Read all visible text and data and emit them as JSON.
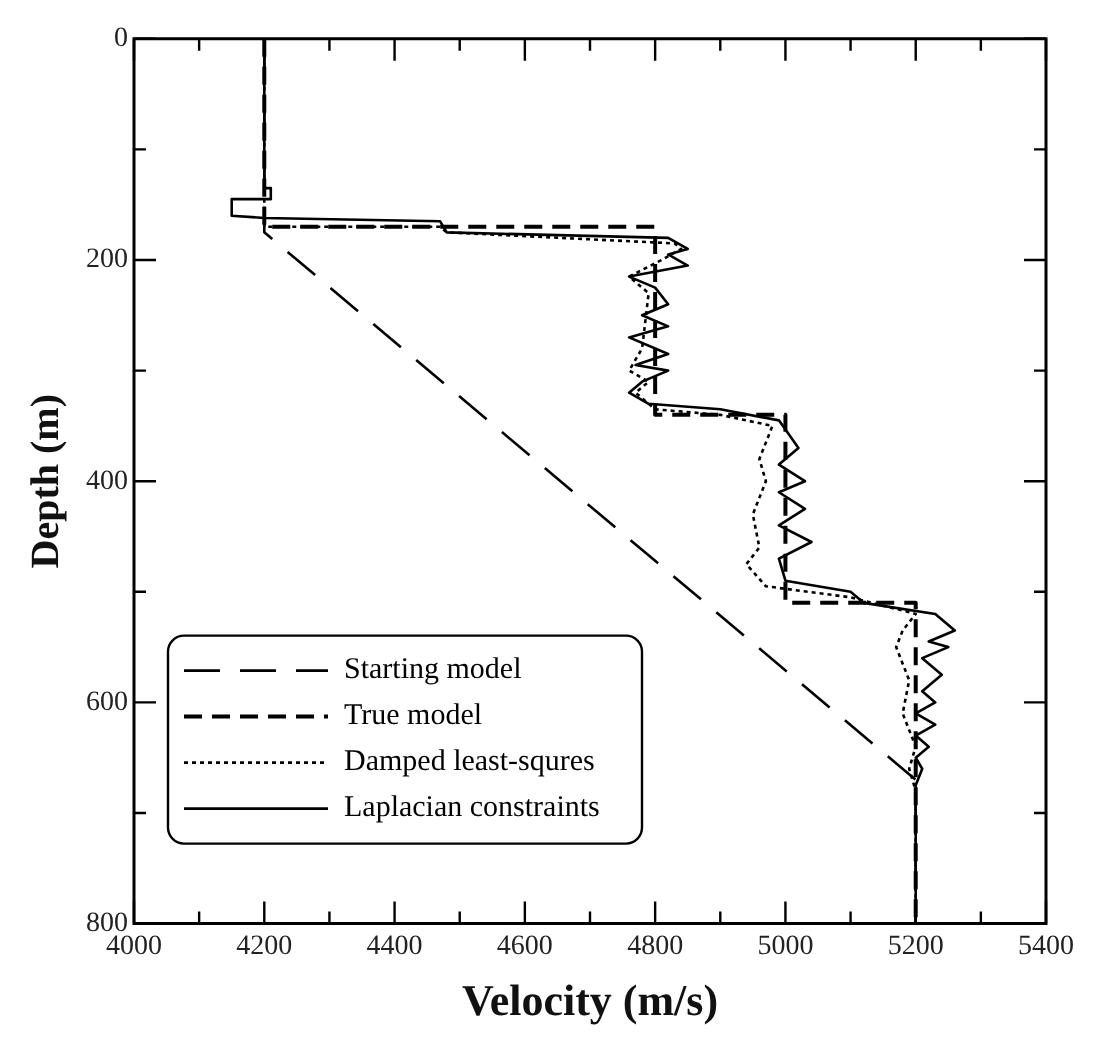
{
  "chart_data": {
    "type": "line",
    "xlabel": "Velocity (m/s)",
    "ylabel": "Depth (m)",
    "xlim": [
      4000,
      5400
    ],
    "ylim": [
      800,
      0
    ],
    "xticks": [
      4000,
      {
        "value": 4100,
        "label": null
      },
      4200,
      {
        "value": 4300,
        "label": null
      },
      4400,
      {
        "value": 4500,
        "label": null
      },
      4600,
      {
        "value": 4700,
        "label": null
      },
      4800,
      {
        "value": 4900,
        "label": null
      },
      5000,
      {
        "value": 5100,
        "label": null
      },
      5200,
      {
        "value": 5300,
        "label": null
      },
      5400
    ],
    "yticks": [
      0,
      {
        "value": 100,
        "label": null
      },
      200,
      {
        "value": 300,
        "label": null
      },
      400,
      {
        "value": 500,
        "label": null
      },
      600,
      {
        "value": 700,
        "label": null
      },
      800
    ],
    "grid": false,
    "legend": "bottom left",
    "marker": "none",
    "series": [
      {
        "name": "Starting model",
        "color": "#000000",
        "line_style": "longdash",
        "x": [
          4200,
          4200,
          5200,
          5200
        ],
        "values": [
          0,
          175,
          670,
          800
        ]
      },
      {
        "name": "True model",
        "color": "#000000",
        "line_style": "dashed",
        "x": [
          4200,
          4200,
          4800,
          4800,
          5000,
          5000,
          5200,
          5200
        ],
        "values": [
          0,
          170,
          170,
          340,
          340,
          510,
          510,
          800
        ]
      },
      {
        "name": "Damped least-squres",
        "color": "#000000",
        "line_style": "dotted",
        "x": [
          4200,
          4200,
          4470,
          4480,
          4830,
          4840,
          4810,
          4760,
          4790,
          4780,
          4760,
          4790,
          4770,
          4800,
          4900,
          4980,
          4960,
          4970,
          4950,
          4960,
          4940,
          4970,
          5100,
          5200,
          5180,
          5170,
          5190,
          5180,
          5200,
          5190,
          5200,
          5200
        ],
        "values": [
          0,
          170,
          170,
          175,
          185,
          190,
          200,
          215,
          230,
          280,
          300,
          310,
          320,
          335,
          340,
          350,
          380,
          400,
          430,
          460,
          475,
          495,
          505,
          520,
          535,
          550,
          580,
          610,
          640,
          660,
          680,
          800
        ]
      },
      {
        "name": "Laplacian constraints",
        "color": "#000000",
        "line_style": "solid",
        "x": [
          4200,
          4200,
          4210,
          4210,
          4150,
          4150,
          4200,
          4470,
          4480,
          4820,
          4850,
          4820,
          4850,
          4760,
          4800,
          4820,
          4780,
          4820,
          4760,
          4820,
          4770,
          4820,
          4780,
          4760,
          4790,
          4900,
          4990,
          5020,
          4990,
          5030,
          4990,
          5030,
          4990,
          5040,
          4990,
          5000,
          5100,
          5120,
          5230,
          5260,
          5220,
          5250,
          5210,
          5240,
          5210,
          5230,
          5200,
          5230,
          5200,
          5220,
          5200,
          5210,
          5200,
          5200
        ],
        "values": [
          0,
          135,
          135,
          145,
          145,
          160,
          162,
          165,
          175,
          180,
          190,
          195,
          205,
          215,
          225,
          240,
          250,
          260,
          270,
          285,
          295,
          300,
          310,
          320,
          330,
          335,
          345,
          370,
          385,
          400,
          410,
          425,
          440,
          455,
          470,
          490,
          500,
          510,
          520,
          535,
          545,
          550,
          560,
          575,
          590,
          600,
          610,
          620,
          630,
          640,
          650,
          660,
          675,
          800
        ]
      }
    ]
  }
}
